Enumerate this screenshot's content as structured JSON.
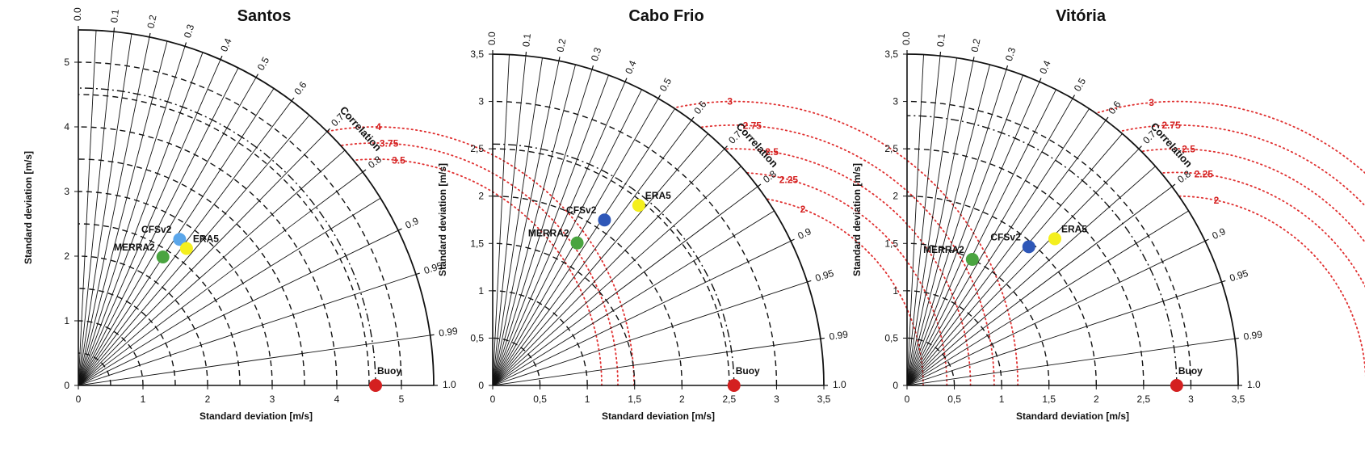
{
  "chart_data": [
    {
      "type": "taylor",
      "title": "Santos",
      "xlabel": "Standard deviation [m/s]",
      "ylabel": "Standard deviation [m/s]",
      "correlation_label": "Correlation",
      "max_std": 5.5,
      "std_ticks": [
        0,
        1,
        2,
        3,
        4,
        5
      ],
      "std_tick_labels": [
        "0",
        "1",
        "2",
        "3",
        "4",
        "5"
      ],
      "std_arcs": [
        0.5,
        1,
        1.5,
        2,
        2.5,
        3,
        3.5,
        4,
        4.5,
        5
      ],
      "reference_std": 4.6,
      "corr_ticks": [
        0.0,
        0.1,
        0.2,
        0.3,
        0.4,
        0.5,
        0.6,
        0.7,
        0.8,
        0.9,
        0.95,
        0.99,
        1.0
      ],
      "corr_tick_labels": [
        "0.0",
        "0.1",
        "0.2",
        "0.3",
        "0.4",
        "0.5",
        "0.6",
        "0.7",
        "0.8",
        "0.9",
        "0.95",
        "0.99",
        "1.0"
      ],
      "rmsd_contours": [
        {
          "value": 3.5,
          "label": "3.5"
        },
        {
          "value": 3.75,
          "label": "3.75"
        },
        {
          "value": 4,
          "label": "4"
        }
      ],
      "points": [
        {
          "name": "Buoy",
          "std": 4.6,
          "corr": 1.0,
          "color": "#d42020"
        },
        {
          "name": "CFSv2",
          "std": 2.75,
          "corr": 0.57,
          "color": "#5aa6ea"
        },
        {
          "name": "ERA5",
          "std": 2.7,
          "corr": 0.62,
          "color": "#f4ef1e"
        },
        {
          "name": "MERRA2",
          "std": 2.38,
          "corr": 0.55,
          "color": "#4aa440"
        }
      ]
    },
    {
      "type": "taylor",
      "title": "Cabo Frio",
      "xlabel": "Standard deviation [m/s]",
      "ylabel": "Standard deviation [m/s]",
      "correlation_label": "Correlation",
      "max_std": 3.5,
      "std_ticks": [
        0,
        0.5,
        1,
        1.5,
        2,
        2.5,
        3,
        3.5
      ],
      "std_tick_labels": [
        "0",
        "0,5",
        "1",
        "1,5",
        "2",
        "2,5",
        "3",
        "3,5"
      ],
      "std_arcs": [
        0.5,
        1,
        1.5,
        2,
        2.5,
        3
      ],
      "reference_std": 2.55,
      "corr_ticks": [
        0.0,
        0.1,
        0.2,
        0.3,
        0.4,
        0.5,
        0.6,
        0.7,
        0.8,
        0.9,
        0.95,
        0.99,
        1.0
      ],
      "corr_tick_labels": [
        "0.0",
        "0.1",
        "0.2",
        "0.3",
        "0.4",
        "0.5",
        "0.6",
        "0.7",
        "0.8",
        "0.9",
        "0.95",
        "0.99",
        "1.0"
      ],
      "rmsd_contours": [
        {
          "value": 2,
          "label": "2"
        },
        {
          "value": 2.25,
          "label": "2.25"
        },
        {
          "value": 2.5,
          "label": "2.5"
        },
        {
          "value": 2.75,
          "label": "2.75"
        },
        {
          "value": 3,
          "label": "3"
        }
      ],
      "points": [
        {
          "name": "Buoy",
          "std": 2.55,
          "corr": 1.0,
          "color": "#d42020"
        },
        {
          "name": "CFSv2",
          "std": 2.11,
          "corr": 0.56,
          "color": "#2e57b8"
        },
        {
          "name": "ERA5",
          "std": 2.45,
          "corr": 0.63,
          "color": "#f4ef1e"
        },
        {
          "name": "MERRA2",
          "std": 1.75,
          "corr": 0.51,
          "color": "#4aa440"
        }
      ]
    },
    {
      "type": "taylor",
      "title": "Vitória",
      "xlabel": "Standard deviation [m/s]",
      "ylabel": "Standard deviation [m/s]",
      "correlation_label": "Correlation",
      "max_std": 3.5,
      "std_ticks": [
        0,
        0.5,
        1,
        1.5,
        2,
        2.5,
        3,
        3.5
      ],
      "std_tick_labels": [
        "0",
        "0,5",
        "1",
        "1,5",
        "2",
        "2,5",
        "3",
        "3,5"
      ],
      "std_arcs": [
        0.5,
        1,
        1.5,
        2,
        2.5,
        3
      ],
      "reference_std": 2.85,
      "corr_ticks": [
        0.0,
        0.1,
        0.2,
        0.3,
        0.4,
        0.5,
        0.6,
        0.7,
        0.8,
        0.9,
        0.95,
        0.99,
        1.0
      ],
      "corr_tick_labels": [
        "0.0",
        "0.1",
        "0.2",
        "0.3",
        "0.4",
        "0.5",
        "0.6",
        "0.7",
        "0.8",
        "0.9",
        "0.95",
        "0.99",
        "1.0"
      ],
      "rmsd_contours": [
        {
          "value": 2,
          "label": "2"
        },
        {
          "value": 2.25,
          "label": "2.25"
        },
        {
          "value": 2.5,
          "label": "2.5"
        },
        {
          "value": 2.75,
          "label": "2.75"
        },
        {
          "value": 3,
          "label": "3"
        }
      ],
      "points": [
        {
          "name": "Buoy",
          "std": 2.85,
          "corr": 1.0,
          "color": "#d42020"
        },
        {
          "name": "CFSv2",
          "std": 1.95,
          "corr": 0.66,
          "color": "#2e57b8"
        },
        {
          "name": "ERA5",
          "std": 2.2,
          "corr": 0.71,
          "color": "#f4ef1e"
        },
        {
          "name": "MERRA2",
          "std": 1.5,
          "corr": 0.46,
          "color": "#4aa440"
        }
      ]
    }
  ]
}
